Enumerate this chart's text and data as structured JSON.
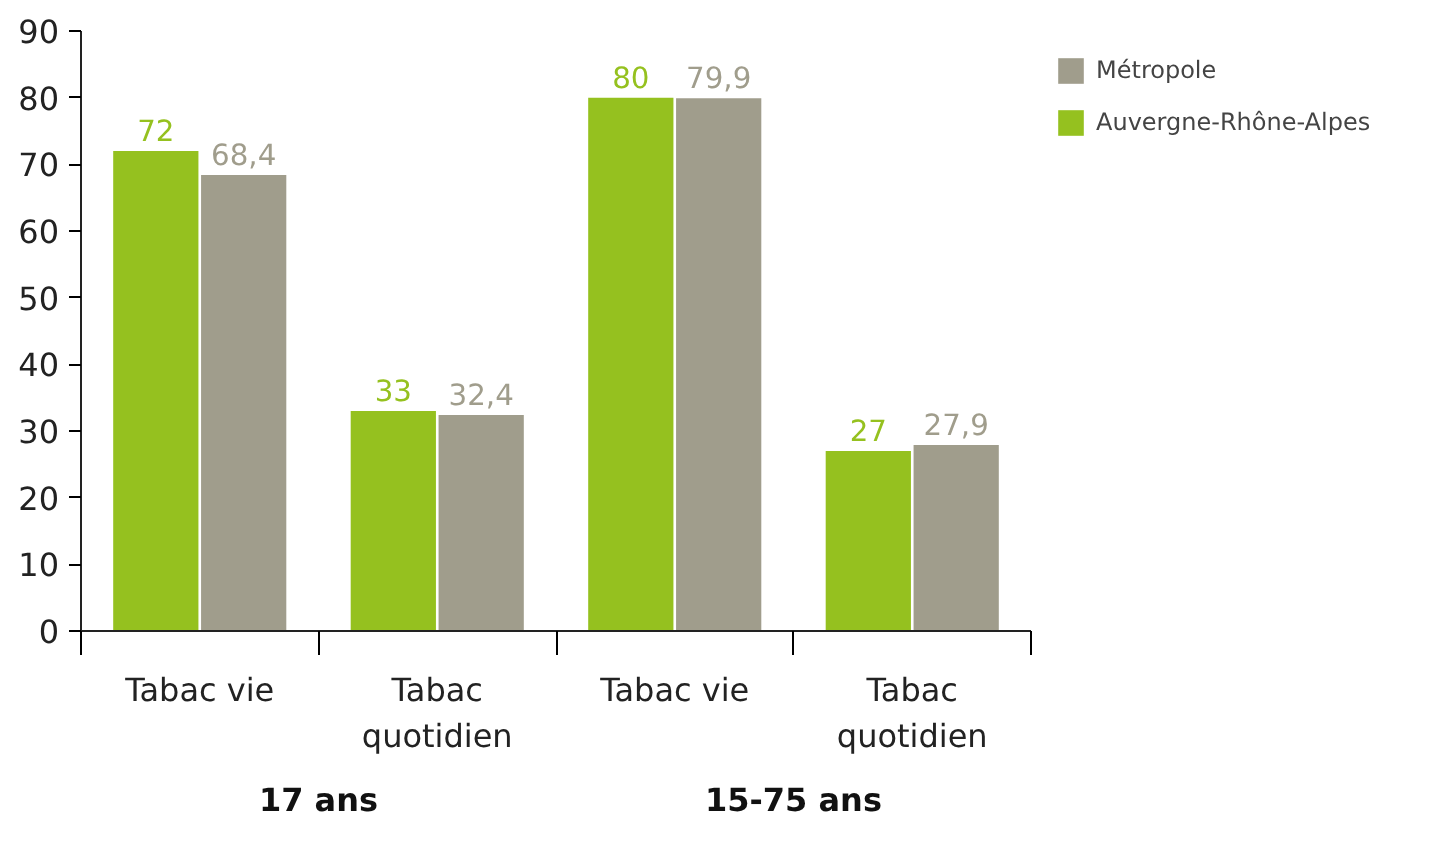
{
  "chart_data": {
    "type": "bar",
    "categories": [
      "Tabac vie",
      "Tabac quotidien",
      "Tabac vie",
      "Tabac quotidien"
    ],
    "series": [
      {
        "name": "Auvergne-Rhône-Alpes",
        "color": "#95c11f",
        "values": [
          72,
          33,
          80,
          27
        ],
        "value_labels": [
          "72",
          "33",
          "80",
          "27"
        ]
      },
      {
        "name": "Métropole",
        "color": "#a09d8c",
        "values": [
          68.4,
          32.4,
          79.9,
          27.9
        ],
        "value_labels": [
          "68,4",
          "32,4",
          "79,9",
          "27,9"
        ]
      }
    ],
    "ylim": [
      0,
      90
    ],
    "yticks": [
      0,
      10,
      20,
      30,
      40,
      50,
      60,
      70,
      80,
      90
    ],
    "grid": false,
    "legend": "right",
    "annotations": [
      "17 ans",
      "15-75 ans"
    ]
  }
}
